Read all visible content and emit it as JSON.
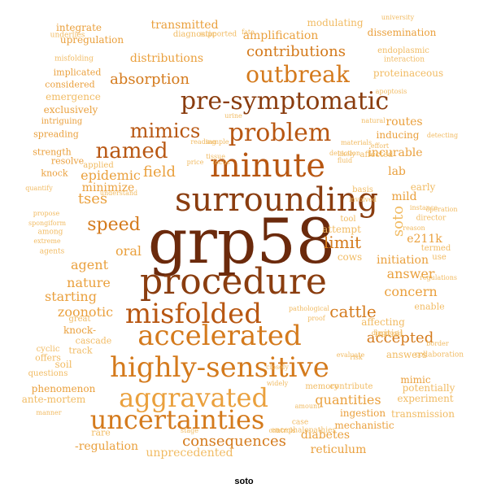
{
  "caption": "soto",
  "palette": {
    "darkest": "#6b2a0c",
    "dark": "#8a3d0f",
    "mid_dark": "#b85712",
    "mid": "#d47a1c",
    "light": "#eaa03d",
    "lighter": "#f1bb63",
    "lightest": "#f5cd85"
  },
  "words": [
    "grp58",
    "procedure",
    "surrounding",
    "minute",
    "misfolded",
    "accelerated",
    "highly-sensitive",
    "pre-symptomatic",
    "problem",
    "mimics",
    "named",
    "uncertainties",
    "aggravated",
    "outbreak",
    "speed",
    "limit",
    "cattle",
    "accepted",
    "consequences",
    "quantities",
    "soto",
    "contributions",
    "absorption",
    "amplification",
    "distributions",
    "transmitted",
    "integrate",
    "upregulation",
    "modulating",
    "dissemination",
    "endoplasmic",
    "interaction",
    "proteinaceous",
    "implicated",
    "considered",
    "emergence",
    "exclusively",
    "intriguing",
    "spreading",
    "strength",
    "resolve",
    "knock",
    "quantify",
    "epidemic",
    "field",
    "tses",
    "minimize",
    "oral",
    "agent",
    "nature",
    "starting",
    "zoonotic",
    "knock-",
    "lab",
    "incurable",
    "routes",
    "inducing",
    "early",
    "mild",
    "e211k",
    "answer",
    "concern",
    "affecting",
    "initial",
    "enable",
    "initiation",
    "attempt",
    "tool",
    "cows",
    "use",
    "termed",
    "answers",
    "mimic",
    "potentially",
    "experiment",
    "transmission",
    "ingestion",
    "mechanistic",
    "diabetes",
    "reticulum",
    "-regulation",
    "unprecedented",
    "phenomenon",
    "ante-mortem",
    "memory",
    "contribute",
    "soil",
    "great",
    "cascade",
    "track",
    "rare",
    "case",
    "encephalopathies",
    "applied",
    "regulations",
    "director",
    "operation",
    "diagnosis",
    "offers",
    "cyclic",
    "questions",
    "university",
    "misfolding",
    "diagnostic",
    "supported",
    "underlies",
    "apoptosis",
    "detecting",
    "affected",
    "basis",
    "understand",
    "propose",
    "spongiform",
    "among",
    "extreme",
    "agents",
    "natural",
    "border",
    "widely",
    "closely",
    "manner",
    "risk",
    "collaboration",
    "reason",
    "instance",
    "pathological",
    "proof",
    "evaluate",
    "controls",
    "amount",
    "urine",
    "fate",
    "reading",
    "price",
    "tissue",
    "materials",
    "effort",
    "detection",
    "fluid",
    "stage",
    "focus",
    "likely",
    "sample",
    "involved",
    "ensure",
    "swollen",
    "tested",
    "secretion"
  ]
}
